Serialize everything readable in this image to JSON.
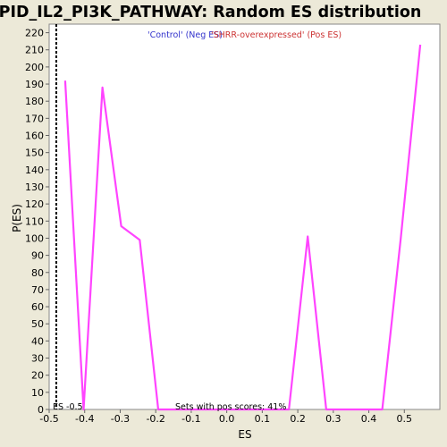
{
  "title": "PID_IL2_PI3K_PATHWAY: Random ES distribution",
  "legend": {
    "neg": "'Control' (Neg ES)",
    "pos": "'SHRR-overexpressed' (Pos ES)"
  },
  "annotations": {
    "es_marker": "ES -0.5",
    "pos_scores": "Sets with pos scores: 41%"
  },
  "colors": {
    "background": "#ece9d8",
    "plot_bg": "#ffffff",
    "line": "#ff44ff",
    "marker": "#000000"
  },
  "chart_data": {
    "type": "line",
    "title": "PID_IL2_PI3K_PATHWAY: Random ES distribution",
    "xlabel": "ES",
    "ylabel": "P(ES)",
    "xlim": [
      -0.5,
      0.6
    ],
    "ylim": [
      0,
      225
    ],
    "xticks": [
      -0.5,
      -0.4,
      -0.3,
      -0.2,
      -0.1,
      0.0,
      0.1,
      0.2,
      0.3,
      0.4,
      0.5
    ],
    "xtick_labels": [
      "-0.5",
      "-0.4",
      "-0.3",
      "-0.2",
      "-0.1",
      "0.0",
      "0.1",
      "0.2",
      "0.3",
      "0.4",
      "0.5"
    ],
    "yticks": [
      0,
      10,
      20,
      30,
      40,
      50,
      60,
      70,
      80,
      90,
      100,
      110,
      120,
      130,
      140,
      150,
      160,
      170,
      180,
      190,
      200,
      210,
      220
    ],
    "ytick_labels": [
      "0",
      "10",
      "20",
      "30",
      "40",
      "50",
      "60",
      "70",
      "80",
      "90",
      "100",
      "110",
      "120",
      "130",
      "140",
      "150",
      "160",
      "170",
      "180",
      "190",
      "200",
      "210",
      "220"
    ],
    "series": [
      {
        "x": [
          -0.455,
          -0.403,
          -0.35,
          -0.297,
          -0.245,
          -0.193,
          0.175,
          0.228,
          0.28,
          0.333,
          0.385,
          0.438,
          0.49,
          0.545
        ],
        "y": [
          192,
          0,
          188,
          107,
          99,
          0,
          0,
          101,
          0,
          0,
          0,
          0,
          100,
          213
        ]
      }
    ],
    "es_marker_x": -0.48,
    "grid": false,
    "legend": "top-center"
  }
}
